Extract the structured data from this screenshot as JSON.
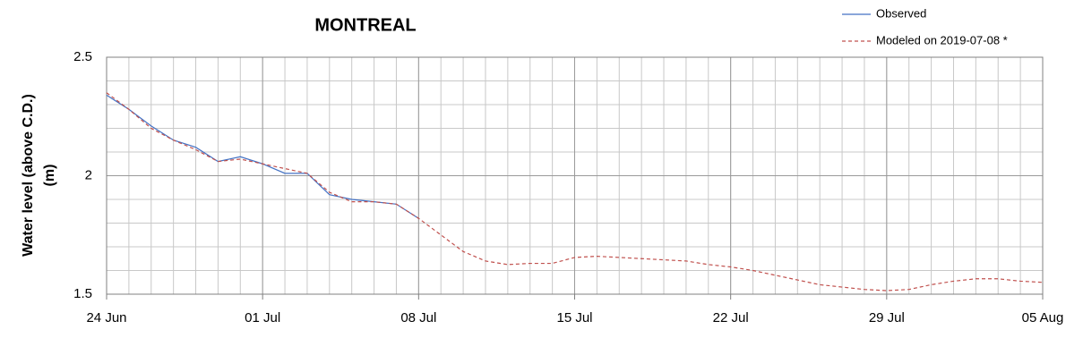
{
  "chart_data": {
    "type": "line",
    "title": "MONTREAL",
    "y_label": [
      "Water level (above C.D.)",
      "(m)"
    ],
    "x": [
      "24 Jun",
      "25 Jun",
      "26 Jun",
      "27 Jun",
      "28 Jun",
      "29 Jun",
      "30 Jun",
      "01 Jul",
      "02 Jul",
      "03 Jul",
      "04 Jul",
      "05 Jul",
      "06 Jul",
      "07 Jul",
      "08 Jul",
      "09 Jul",
      "10 Jul",
      "11 Jul",
      "12 Jul",
      "13 Jul",
      "14 Jul",
      "15 Jul",
      "16 Jul",
      "17 Jul",
      "18 Jul",
      "19 Jul",
      "20 Jul",
      "21 Jul",
      "22 Jul",
      "23 Jul",
      "24 Jul",
      "25 Jul",
      "26 Jul",
      "27 Jul",
      "28 Jul",
      "29 Jul",
      "30 Jul",
      "31 Jul",
      "01 Aug",
      "02 Aug",
      "03 Aug",
      "04 Aug",
      "05 Aug"
    ],
    "series": [
      {
        "name": "Observed",
        "color": "#4472c4",
        "dash": false,
        "values": [
          2.34,
          2.28,
          2.21,
          2.15,
          2.12,
          2.06,
          2.08,
          2.05,
          2.01,
          2.01,
          1.92,
          1.9,
          1.89,
          1.88,
          1.82,
          null,
          null,
          null,
          null,
          null,
          null,
          null,
          null,
          null,
          null,
          null,
          null,
          null,
          null,
          null,
          null,
          null,
          null,
          null,
          null,
          null,
          null,
          null,
          null,
          null,
          null,
          null,
          null
        ]
      },
      {
        "name": "Modeled on 2019-07-08 *",
        "color": "#c0504d",
        "dash": true,
        "values": [
          2.35,
          2.28,
          2.2,
          2.15,
          2.11,
          2.06,
          2.07,
          2.05,
          2.03,
          2.01,
          1.93,
          1.89,
          1.89,
          1.88,
          1.82,
          1.75,
          1.68,
          1.64,
          1.625,
          1.63,
          1.63,
          1.655,
          1.66,
          1.655,
          1.65,
          1.645,
          1.64,
          1.625,
          1.615,
          1.6,
          1.58,
          1.56,
          1.54,
          1.53,
          1.52,
          1.515,
          1.52,
          1.54,
          1.555,
          1.565,
          1.565,
          1.555,
          1.55
        ]
      }
    ],
    "xlim": [
      "24 Jun",
      "05 Aug"
    ],
    "xticks": [
      "24 Jun",
      "01 Jul",
      "08 Jul",
      "15 Jul",
      "22 Jul",
      "29 Jul",
      "05 Aug"
    ],
    "ylim": [
      1.5,
      2.5
    ],
    "yticks": [
      1.5,
      2,
      2.5
    ],
    "grid": true,
    "legend": "top-right"
  }
}
